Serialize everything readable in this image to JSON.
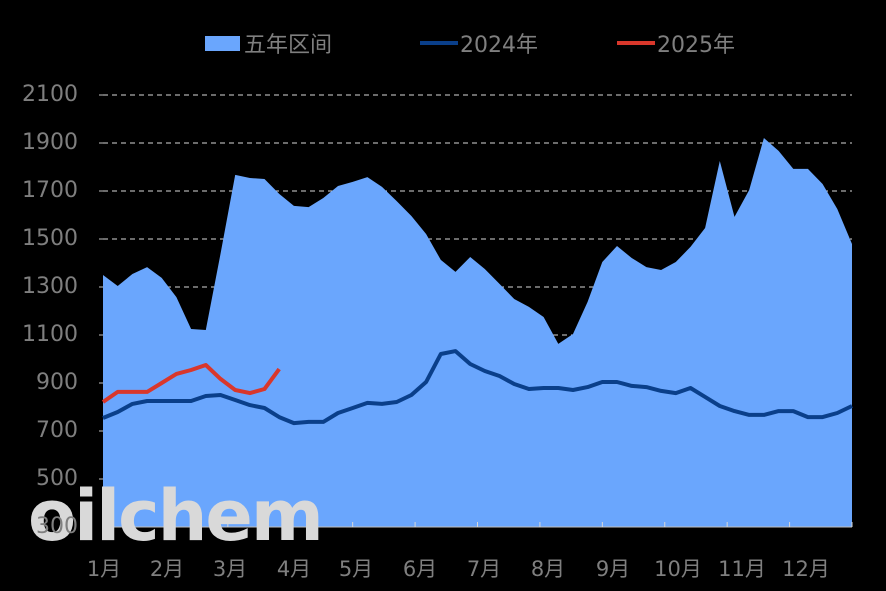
{
  "chart_data": {
    "type": "area",
    "title": "",
    "xlabel": "",
    "ylabel": "",
    "ylim": [
      300,
      2100
    ],
    "yticks": [
      300,
      500,
      700,
      900,
      1100,
      1300,
      1500,
      1700,
      1900,
      2100
    ],
    "categories": [
      "1月",
      "2月",
      "3月",
      "4月",
      "5月",
      "6月",
      "7月",
      "8月",
      "9月",
      "10月",
      "11月",
      "12月"
    ],
    "grid": "horizontal dashed",
    "legend_position": "top",
    "legend": [
      "五年区间",
      "2024年",
      "2025年"
    ],
    "series": [
      {
        "name": "五年区间",
        "kind": "range-area",
        "color": "#6aa6fd",
        "lower": 300,
        "upper": [
          1350,
          1304,
          1354,
          1383,
          1338,
          1258,
          1125,
          1121,
          1438,
          1767,
          1754,
          1750,
          1688,
          1638,
          1633,
          1671,
          1721,
          1738,
          1758,
          1717,
          1658,
          1596,
          1521,
          1413,
          1363,
          1425,
          1375,
          1313,
          1250,
          1217,
          1175,
          1063,
          1104,
          1238,
          1404,
          1471,
          1421,
          1383,
          1371,
          1404,
          1467,
          1546,
          1825,
          1592,
          1704,
          1921,
          1867,
          1792,
          1792,
          1729,
          1625,
          1479
        ]
      },
      {
        "name": "2024年",
        "kind": "line",
        "color": "#0a3f8a",
        "values": [
          754,
          779,
          813,
          825,
          825,
          825,
          825,
          846,
          850,
          829,
          808,
          796,
          758,
          733,
          738,
          738,
          775,
          796,
          817,
          813,
          821,
          850,
          904,
          1021,
          1033,
          979,
          950,
          929,
          896,
          875,
          879,
          879,
          871,
          883,
          904,
          904,
          888,
          883,
          867,
          858,
          879,
          842,
          804,
          783,
          767,
          767,
          783,
          783,
          758,
          758,
          775,
          804
        ]
      },
      {
        "name": "2025年",
        "kind": "line",
        "color": "#d9372b",
        "values": [
          821,
          863,
          863,
          863,
          900,
          938,
          954,
          975,
          917,
          871,
          858,
          875,
          958
        ]
      }
    ]
  },
  "legend": {
    "items": [
      {
        "label": "五年区间",
        "color": "#6aa6fd"
      },
      {
        "label": "2024年",
        "color": "#0a3f8a"
      },
      {
        "label": "2025年",
        "color": "#d9372b"
      }
    ]
  },
  "axes": {
    "y_labels": [
      "2100",
      "1900",
      "1700",
      "1500",
      "1300",
      "1100",
      "900",
      "700",
      "500",
      "300"
    ],
    "x_labels": [
      "1月",
      "2月",
      "3月",
      "4月",
      "5月",
      "6月",
      "7月",
      "8月",
      "9月",
      "10月",
      "11月",
      "12月"
    ]
  },
  "watermark": "oilchem"
}
